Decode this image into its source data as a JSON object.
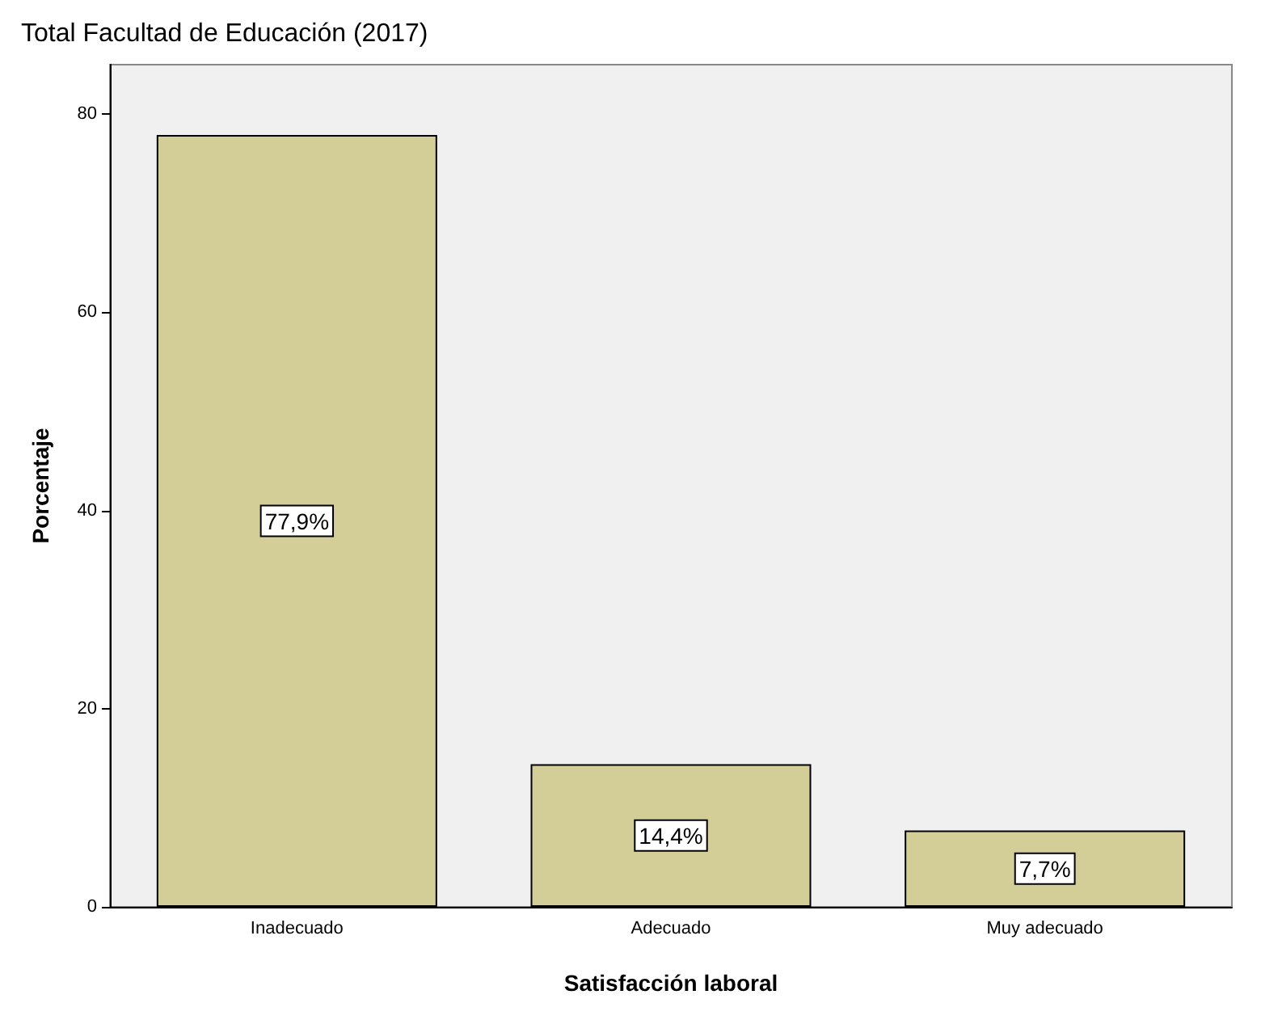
{
  "chart_data": {
    "type": "bar",
    "title": "Total Facultad de Educación (2017)",
    "xlabel": "Satisfacción laboral",
    "ylabel": "Porcentaje",
    "categories": [
      "Inadecuado",
      "Adecuado",
      "Muy adecuado"
    ],
    "values": [
      77.9,
      14.4,
      7.7
    ],
    "value_labels": [
      "77,9%",
      "14,4%",
      "7,7%"
    ],
    "color": "#d3ce97",
    "ylim": [
      0,
      85
    ],
    "yticks": [
      0,
      20,
      40,
      60,
      80
    ],
    "grid": false
  }
}
